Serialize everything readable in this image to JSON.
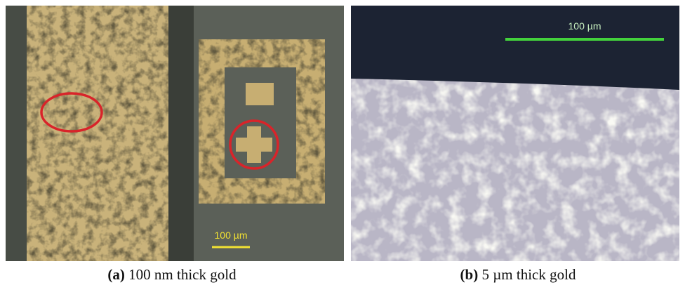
{
  "panels": [
    {
      "label": "(a)",
      "caption": "100 nm thick gold",
      "scale_bar": "100 µm"
    },
    {
      "label": "(b)",
      "caption": "5 µm thick gold",
      "scale_bar": "100 µm"
    }
  ]
}
